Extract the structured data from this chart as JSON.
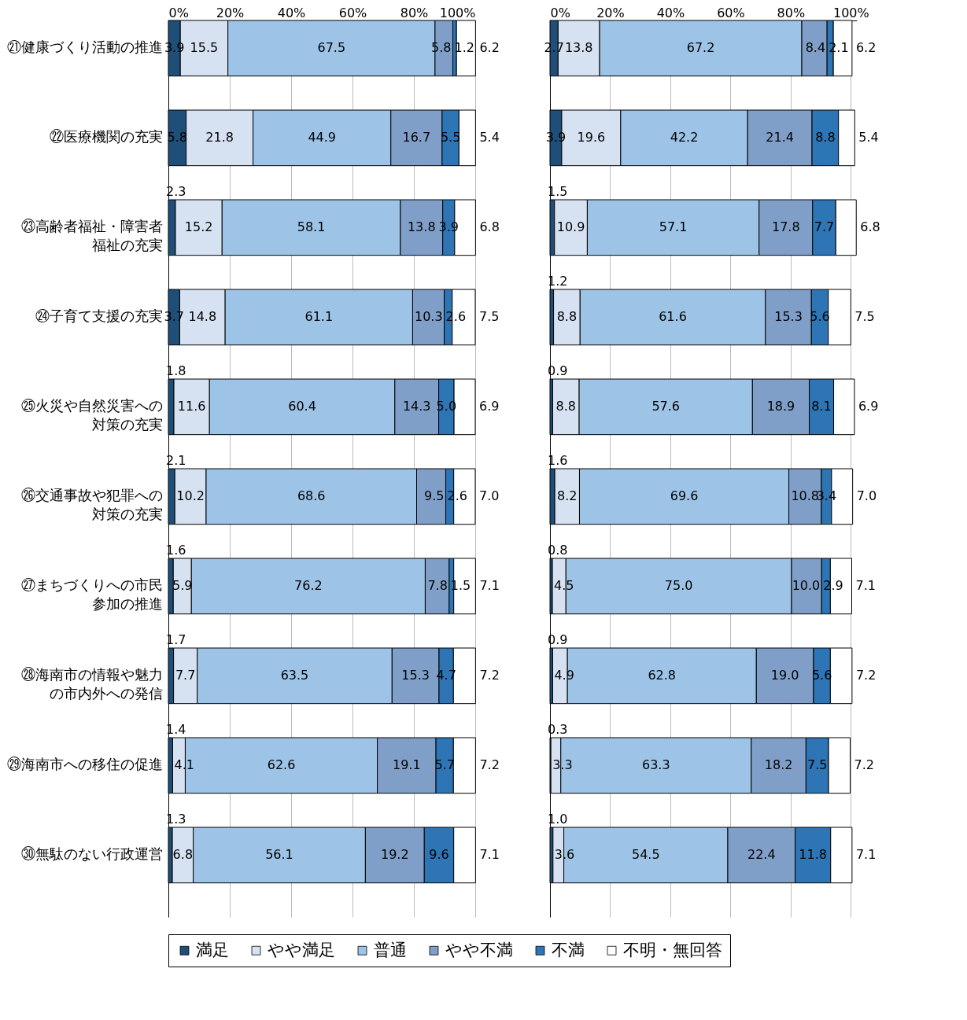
{
  "chart_data": [
    {
      "type": "bar",
      "orientation": "horizontal",
      "stacked": true,
      "grid": "x",
      "legend": "bottom",
      "categories": [
        "㉑健康づくり活動の推進",
        "㉒医療機関の充実",
        "㉓高齢者福祉・障害者福祉の充実",
        "㉔子育て支援の充実",
        "㉕火災や自然災害への対策の充実",
        "㉖交通事故や犯罪への対策の充実",
        "㉗まちづくりへの市民参加の推進",
        "㉘海南市の情報や魅力の市内外への発信",
        "㉙海南市への移住の促進",
        "㉚無駄のない行政運営"
      ],
      "xlim": [
        0,
        100
      ],
      "xticks": [
        {
          "value": 0,
          "label": "0%"
        },
        {
          "value": 20,
          "label": "20%"
        },
        {
          "value": 40,
          "label": "40%"
        },
        {
          "value": 60,
          "label": "60%"
        },
        {
          "value": 80,
          "label": "80%"
        },
        {
          "value": 100,
          "label": "100%"
        }
      ],
      "series": [
        {
          "name": "満足",
          "color": "#1f4e79",
          "values": [
            3.9,
            5.8,
            2.3,
            3.7,
            1.8,
            2.1,
            1.6,
            1.7,
            1.4,
            1.3
          ],
          "value_labels": [
            "3.9",
            "5.8",
            "2.3",
            "3.7",
            "1.8",
            "2.1",
            "1.6",
            "1.7",
            "1.4",
            "1.3"
          ]
        },
        {
          "name": "やや満足",
          "color": "#d6e2f2",
          "values": [
            15.5,
            21.8,
            15.2,
            14.8,
            11.6,
            10.2,
            5.9,
            7.7,
            4.1,
            6.8
          ],
          "value_labels": [
            "15.5",
            "21.8",
            "15.2",
            "14.8",
            "11.6",
            "10.2",
            "5.9",
            "7.7",
            "4.1",
            "6.8"
          ]
        },
        {
          "name": "普通",
          "color": "#9dc3e6",
          "values": [
            67.5,
            44.9,
            58.1,
            61.1,
            60.4,
            68.6,
            76.2,
            63.5,
            62.6,
            56.1
          ],
          "value_labels": [
            "67.5",
            "44.9",
            "58.1",
            "61.1",
            "60.4",
            "68.6",
            "76.2",
            "63.5",
            "62.6",
            "56.1"
          ]
        },
        {
          "name": "やや不満",
          "color": "#7f9fc8",
          "values": [
            5.8,
            16.7,
            13.8,
            10.3,
            14.3,
            9.5,
            7.8,
            15.3,
            19.1,
            19.2
          ],
          "value_labels": [
            "5.8",
            "16.7",
            "13.8",
            "10.3",
            "14.3",
            "9.5",
            "7.8",
            "15.3",
            "19.1",
            "19.2"
          ]
        },
        {
          "name": "不満",
          "color": "#2e75b6",
          "values": [
            1.2,
            5.5,
            3.9,
            2.6,
            5.0,
            2.6,
            1.5,
            4.7,
            5.7,
            9.6
          ],
          "value_labels": [
            "1.2",
            "5.5",
            "3.9",
            "2.6",
            "5.0",
            "2.6",
            "1.5",
            "4.7",
            "5.7",
            "9.6"
          ]
        },
        {
          "name": "不明・無回答",
          "color": "#ffffff",
          "values": [
            6.2,
            5.4,
            6.8,
            7.5,
            6.9,
            7.0,
            7.1,
            7.2,
            7.2,
            7.1
          ],
          "value_labels": [
            "6.2",
            "5.4",
            "6.8",
            "7.5",
            "6.9",
            "7.0",
            "7.1",
            "7.2",
            "7.2",
            "7.1"
          ]
        }
      ]
    },
    {
      "type": "bar",
      "orientation": "horizontal",
      "stacked": true,
      "grid": "x",
      "legend": "bottom",
      "tick_labels": "x",
      "categories": [
        "㉑健康づくり活動の推進",
        "㉒医療機関の充実",
        "㉓高齢者福祉・障害者福祉の充実",
        "㉔子育て支援の充実",
        "㉕火災や自然災害への対策の充実",
        "㉖交通事故や犯罪への対策の充実",
        "㉗まちづくりへの市民参加の推進",
        "㉘海南市の情報や魅力の市内外への発信",
        "㉙海南市への移住の促進",
        "㉚無駄のない行政運営"
      ],
      "xlim": [
        0,
        102
      ],
      "xticks": [
        {
          "value": 0,
          "label": "0%"
        },
        {
          "value": 20,
          "label": "20%"
        },
        {
          "value": 40,
          "label": "40%"
        },
        {
          "value": 60,
          "label": "60%"
        },
        {
          "value": 80,
          "label": "80%"
        },
        {
          "value": 100,
          "label": "100%"
        }
      ],
      "series": [
        {
          "name": "満足",
          "color": "#1f4e79",
          "values": [
            2.7,
            3.9,
            1.5,
            1.2,
            0.9,
            1.6,
            0.8,
            0.9,
            0.3,
            1.0
          ],
          "value_labels": [
            "2.7",
            "3.9",
            "1.5",
            "1.2",
            "0.9",
            "1.6",
            "0.8",
            "0.9",
            "0.3",
            "1.0"
          ]
        },
        {
          "name": "やや満足",
          "color": "#d6e2f2",
          "values": [
            13.8,
            19.6,
            10.9,
            8.8,
            8.8,
            8.2,
            4.5,
            4.9,
            3.3,
            3.6
          ],
          "value_labels": [
            "13.8",
            "19.6",
            "10.9",
            "8.8",
            "8.8",
            "8.2",
            "4.5",
            "4.9",
            "3.3",
            "3.6"
          ]
        },
        {
          "name": "普通",
          "color": "#9dc3e6",
          "values": [
            67.2,
            42.2,
            57.1,
            61.6,
            57.6,
            69.6,
            75.0,
            62.8,
            63.3,
            54.5
          ],
          "value_labels": [
            "67.2",
            "42.2",
            "57.1",
            "61.6",
            "57.6",
            "69.6",
            "75.0",
            "62.8",
            "63.3",
            "54.5"
          ]
        },
        {
          "name": "やや不満",
          "color": "#7f9fc8",
          "values": [
            8.4,
            21.4,
            17.8,
            15.3,
            18.9,
            10.8,
            10.0,
            19.0,
            18.2,
            22.4
          ],
          "value_labels": [
            "8.4",
            "21.4",
            "17.8",
            "15.3",
            "18.9",
            "10.8",
            "10.0",
            "19.0",
            "18.2",
            "22.4"
          ]
        },
        {
          "name": "不満",
          "color": "#2e75b6",
          "values": [
            2.1,
            8.8,
            7.7,
            5.6,
            8.1,
            3.4,
            2.9,
            5.6,
            7.5,
            11.8
          ],
          "value_labels": [
            "2.1",
            "8.8",
            "7.7",
            "5.6",
            "8.1",
            "3.4",
            "2.9",
            "5.6",
            "7.5",
            "11.8"
          ]
        },
        {
          "name": "不明・無回答",
          "color": "#ffffff",
          "values": [
            6.2,
            5.4,
            6.8,
            7.5,
            6.9,
            7.0,
            7.1,
            7.2,
            7.2,
            7.1
          ],
          "value_labels": [
            "6.2",
            "5.4",
            "6.8",
            "7.5",
            "6.9",
            "7.0",
            "7.1",
            "7.2",
            "7.2",
            "7.1"
          ]
        }
      ]
    }
  ]
}
